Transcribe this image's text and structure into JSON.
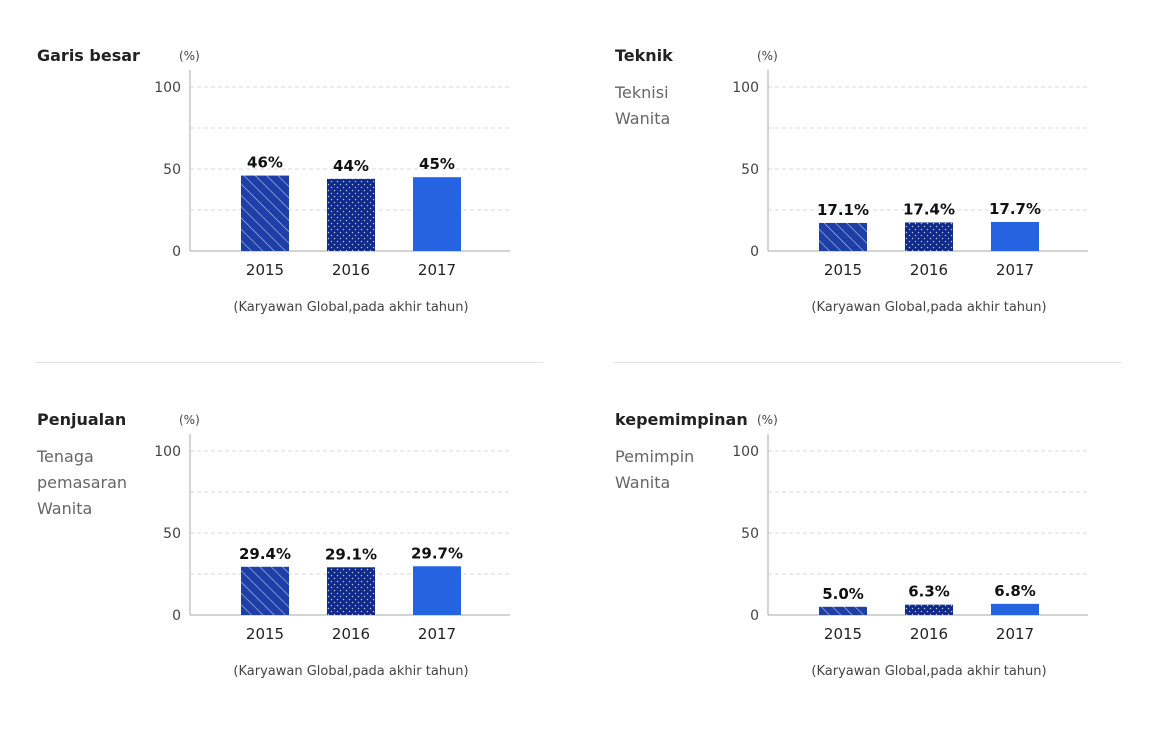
{
  "colors": {
    "bar_2015": "#1e3fa8",
    "bar_2016": "#102a8a",
    "bar_2017": "#2563e0",
    "axis": "#aaaaaa",
    "grid": "#d8d8d8"
  },
  "chart_data": [
    {
      "type": "bar",
      "title": "Garis besar",
      "subtitle": [],
      "ylabel": "(%)",
      "xlabel": "(Karyawan Global,pada akhir tahun)",
      "ylim": [
        0,
        100
      ],
      "y_ticks": [
        "0",
        "50",
        "100"
      ],
      "categories": [
        "2015",
        "2016",
        "2017"
      ],
      "values": [
        46,
        44,
        45
      ],
      "data_labels": [
        "46%",
        "44%",
        "45%"
      ],
      "patterns": [
        "hatch",
        "dots",
        "solid"
      ],
      "grid": true
    },
    {
      "type": "bar",
      "title": "Teknik",
      "subtitle": [
        "Teknisi",
        "Wanita"
      ],
      "ylabel": "(%)",
      "xlabel": "(Karyawan Global,pada akhir tahun)",
      "ylim": [
        0,
        100
      ],
      "y_ticks": [
        "0",
        "50",
        "100"
      ],
      "categories": [
        "2015",
        "2016",
        "2017"
      ],
      "values": [
        17.1,
        17.4,
        17.7
      ],
      "data_labels": [
        "17.1%",
        "17.4%",
        "17.7%"
      ],
      "patterns": [
        "hatch",
        "dots",
        "solid"
      ],
      "grid": true
    },
    {
      "type": "bar",
      "title": "Penjualan",
      "subtitle": [
        "Tenaga",
        "pemasaran",
        "Wanita"
      ],
      "ylabel": "(%)",
      "xlabel": "(Karyawan Global,pada akhir tahun)",
      "ylim": [
        0,
        100
      ],
      "y_ticks": [
        "0",
        "50",
        "100"
      ],
      "categories": [
        "2015",
        "2016",
        "2017"
      ],
      "values": [
        29.4,
        29.1,
        29.7
      ],
      "data_labels": [
        "29.4%",
        "29.1%",
        "29.7%"
      ],
      "patterns": [
        "hatch",
        "dots",
        "solid"
      ],
      "grid": true
    },
    {
      "type": "bar",
      "title": "kepemimpinan",
      "subtitle": [
        "Pemimpin",
        "Wanita"
      ],
      "ylabel": "(%)",
      "xlabel": "(Karyawan Global,pada akhir tahun)",
      "ylim": [
        0,
        100
      ],
      "y_ticks": [
        "0",
        "50",
        "100"
      ],
      "categories": [
        "2015",
        "2016",
        "2017"
      ],
      "values": [
        5.0,
        6.3,
        6.8
      ],
      "data_labels": [
        "5.0%",
        "6.3%",
        "6.8%"
      ],
      "patterns": [
        "hatch",
        "dots",
        "solid"
      ],
      "grid": true
    }
  ]
}
